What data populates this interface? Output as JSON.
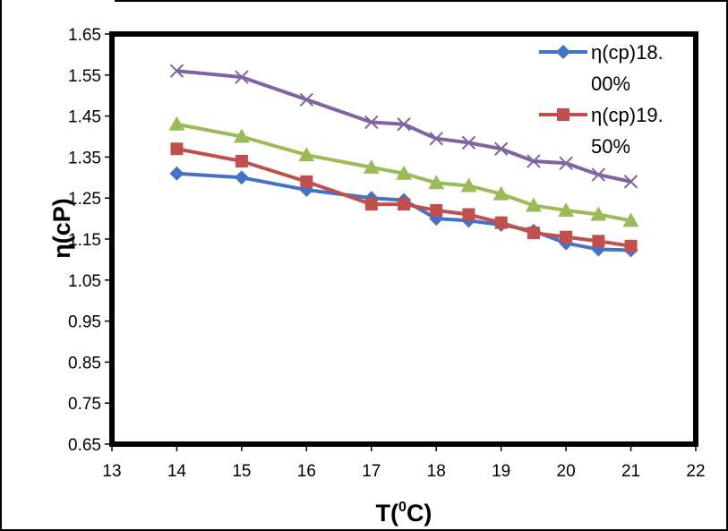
{
  "chart_data": {
    "type": "line",
    "title": "",
    "xlabel": "T(⁰C)",
    "xlabel_main": "T(",
    "xlabel_sup": "0",
    "xlabel_end": "C)",
    "ylabel": "η(cP)",
    "xlim": [
      13,
      22
    ],
    "ylim": [
      0.65,
      1.65
    ],
    "x_ticks": [
      13,
      14,
      15,
      16,
      17,
      18,
      19,
      20,
      21,
      22
    ],
    "y_ticks": [
      "0.65",
      "0.75",
      "0.85",
      "0.95",
      "1.05",
      "1.15",
      "1.25",
      "1.35",
      "1.45",
      "1.55",
      "1.65"
    ],
    "grid": false,
    "legend_position": "top-right",
    "x": [
      14,
      15,
      16,
      17,
      17.5,
      18,
      18.5,
      19,
      19.5,
      20,
      20.5,
      21
    ],
    "series": [
      {
        "name": "η(cp)18.00%",
        "legend_lines": [
          "η(cp)18.",
          "00%"
        ],
        "color": "#4472C4",
        "marker": "diamond",
        "values": [
          1.31,
          1.3,
          1.27,
          1.25,
          1.245,
          1.2,
          1.195,
          1.185,
          1.17,
          1.14,
          1.125,
          1.123
        ]
      },
      {
        "name": "η(cp)19.50%",
        "legend_lines": [
          "η(cp)19.",
          "50%"
        ],
        "color": "#C0504D",
        "marker": "square",
        "values": [
          1.37,
          1.34,
          1.29,
          1.235,
          1.235,
          1.22,
          1.21,
          1.19,
          1.165,
          1.155,
          1.145,
          1.133
        ]
      },
      {
        "name": "",
        "color": "#9BBB59",
        "marker": "triangle",
        "values": [
          1.43,
          1.4,
          1.355,
          1.325,
          1.31,
          1.287,
          1.28,
          1.26,
          1.232,
          1.22,
          1.21,
          1.195
        ]
      },
      {
        "name": "",
        "color": "#8064A2",
        "marker": "x",
        "values": [
          1.56,
          1.545,
          1.49,
          1.435,
          1.43,
          1.395,
          1.385,
          1.37,
          1.34,
          1.335,
          1.307,
          1.29
        ]
      }
    ]
  }
}
